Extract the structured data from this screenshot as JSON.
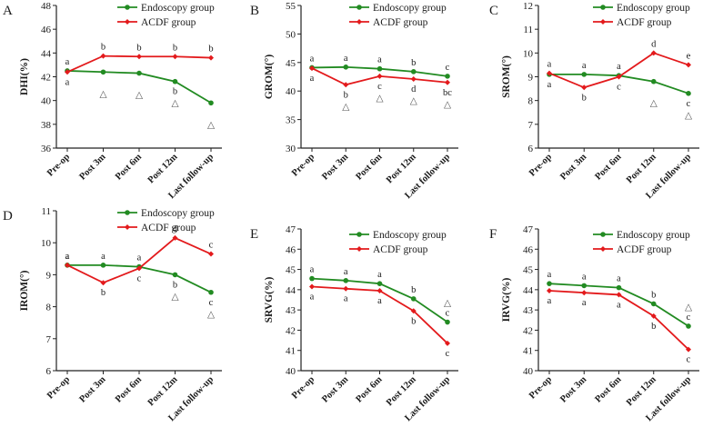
{
  "colors": {
    "endoscopy": "#228B22",
    "acdf": "#E31A1C",
    "axis": "#222222",
    "triangle": "#666666"
  },
  "legend": {
    "endoscopy": "Endoscopy group",
    "acdf": "ACDF group"
  },
  "chart_data": [
    {
      "type": "line",
      "panel": "A",
      "ylabel": "DHI(%)",
      "ylim": [
        36,
        48
      ],
      "yticks": [
        36,
        38,
        40,
        42,
        44,
        46,
        48
      ],
      "categories": [
        "Pre-op",
        "Post 3m",
        "Post 6m",
        "Post 12m",
        "Last follow-up"
      ],
      "series": [
        {
          "name": "Endoscopy group",
          "values": [
            42.5,
            42.4,
            42.3,
            41.6,
            39.8
          ]
        },
        {
          "name": "ACDF group",
          "values": [
            42.4,
            43.75,
            43.7,
            43.7,
            43.6
          ]
        }
      ],
      "annotations_acdf": [
        "a",
        "b",
        "b",
        "b",
        "b"
      ],
      "annotations_endoscopy": [
        "a",
        "",
        "",
        "b",
        ""
      ],
      "triangles": [
        1,
        2,
        3,
        4
      ]
    },
    {
      "type": "line",
      "panel": "B",
      "ylabel": "GROM(°)",
      "ylim": [
        30,
        55
      ],
      "yticks": [
        30,
        35,
        40,
        45,
        50,
        55
      ],
      "categories": [
        "Pre-op",
        "Post 3m",
        "Post 6m",
        "Post 12m",
        "Last follow-up"
      ],
      "series": [
        {
          "name": "Endoscopy group",
          "values": [
            44.1,
            44.2,
            43.9,
            43.4,
            42.6
          ]
        },
        {
          "name": "ACDF group",
          "values": [
            44.0,
            41.1,
            42.6,
            42.1,
            41.5
          ]
        }
      ],
      "annotations_endoscopy": [
        "a",
        "a",
        "a",
        "b",
        "c"
      ],
      "annotations_acdf": [
        "a",
        "b",
        "c",
        "d",
        "bc"
      ],
      "triangles": [
        1,
        2,
        3,
        4
      ]
    },
    {
      "type": "line",
      "panel": "C",
      "ylabel": "SROM(°)",
      "ylim": [
        6,
        12
      ],
      "yticks": [
        6,
        7,
        8,
        9,
        10,
        11,
        12
      ],
      "categories": [
        "Pre-op",
        "Post 3m",
        "Post 6m",
        "Post 12m",
        "Last follow-up"
      ],
      "series": [
        {
          "name": "Endoscopy group",
          "values": [
            9.1,
            9.1,
            9.05,
            8.8,
            8.3
          ]
        },
        {
          "name": "ACDF group",
          "values": [
            9.15,
            8.55,
            9.0,
            10.0,
            9.5
          ]
        }
      ],
      "annotations_endoscopy": [
        "a",
        "a",
        "a",
        "",
        "c"
      ],
      "annotations_acdf": [
        "a",
        "b",
        "c",
        "d",
        "e"
      ],
      "triangles": [
        3,
        4
      ]
    },
    {
      "type": "line",
      "panel": "D",
      "ylabel": "IROM(°)",
      "ylim": [
        6,
        11
      ],
      "yticks": [
        6,
        7,
        8,
        9,
        10,
        11
      ],
      "categories": [
        "Pre-op",
        "Post 3m",
        "Post 6m",
        "Post 12m",
        "Last follow-up"
      ],
      "series": [
        {
          "name": "Endoscopy group",
          "values": [
            9.3,
            9.3,
            9.25,
            9.0,
            8.45
          ]
        },
        {
          "name": "ACDF group",
          "values": [
            9.3,
            8.75,
            9.2,
            10.15,
            9.65
          ]
        }
      ],
      "annotations_endoscopy": [
        "a",
        "a",
        "a",
        "b",
        "c"
      ],
      "annotations_acdf": [
        "a",
        "b",
        "c",
        "d",
        "c"
      ],
      "triangles": [
        3,
        4
      ]
    },
    {
      "type": "line",
      "panel": "E",
      "ylabel": "SRVG(%)",
      "ylim": [
        40,
        47
      ],
      "yticks": [
        40,
        41,
        42,
        43,
        44,
        45,
        46,
        47
      ],
      "categories": [
        "Pre-op",
        "Post 3m",
        "Post 6m",
        "Post 12m",
        "Last follow-up"
      ],
      "series": [
        {
          "name": "Endoscopy group",
          "values": [
            44.55,
            44.45,
            44.3,
            43.55,
            42.4
          ]
        },
        {
          "name": "ACDF group",
          "values": [
            44.15,
            44.05,
            43.95,
            42.95,
            41.35
          ]
        }
      ],
      "annotations_endoscopy": [
        "a",
        "a",
        "a",
        "b",
        "c"
      ],
      "annotations_acdf": [
        "a",
        "a",
        "a",
        "b",
        "c"
      ],
      "triangles": [
        4
      ]
    },
    {
      "type": "line",
      "panel": "F",
      "ylabel": "IRVG(%)",
      "ylim": [
        40,
        47
      ],
      "yticks": [
        40,
        41,
        42,
        43,
        44,
        45,
        46,
        47
      ],
      "categories": [
        "Pre-op",
        "Post 3m",
        "Post 6m",
        "Post 12m",
        "Last follow-up"
      ],
      "series": [
        {
          "name": "Endoscopy group",
          "values": [
            44.3,
            44.2,
            44.1,
            43.3,
            42.2
          ]
        },
        {
          "name": "ACDF group",
          "values": [
            43.95,
            43.85,
            43.75,
            42.7,
            41.05
          ]
        }
      ],
      "annotations_endoscopy": [
        "a",
        "a",
        "a",
        "b",
        "c"
      ],
      "annotations_acdf": [
        "a",
        "a",
        "a",
        "b",
        "c"
      ],
      "triangles": [
        4
      ]
    }
  ]
}
